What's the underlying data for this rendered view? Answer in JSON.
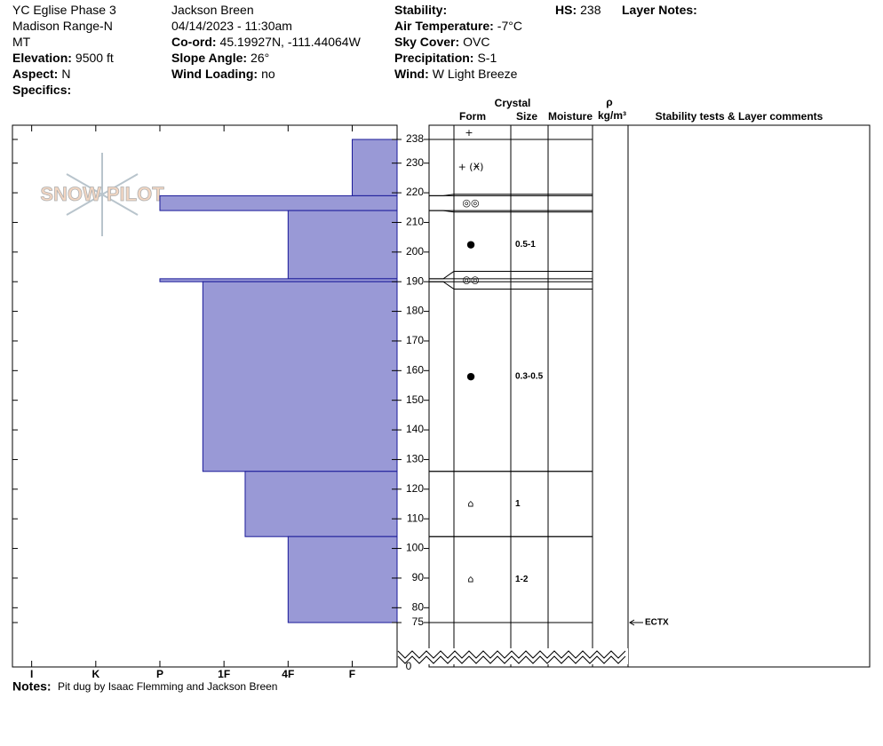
{
  "header": {
    "columns": [
      [
        {
          "value": "YC Eglise Phase 3"
        },
        {
          "value": "Madison Range-N"
        },
        {
          "value": "MT"
        },
        {
          "label": "Elevation:",
          "value": "9500 ft"
        },
        {
          "label": "Aspect:",
          "value": "N"
        },
        {
          "label": "Specifics:"
        }
      ],
      [
        {
          "value": "Jackson Breen"
        },
        {
          "value": "04/14/2023 - 11:30am"
        },
        {
          "label": "Co-ord:",
          "value": "45.19927N, -111.44064W"
        },
        {
          "label": "Slope Angle:",
          "value": "26°"
        },
        {
          "label": "Wind Loading:",
          "value": "no"
        }
      ],
      [
        {
          "label": "Stability:"
        },
        {
          "label": "Air Temperature:",
          "value": "-7°C"
        },
        {
          "label": "Sky Cover:",
          "value": "OVC"
        },
        {
          "label": "Precipitation:",
          "value": "S-1"
        },
        {
          "label": "Wind:",
          "value": "W  Light Breeze"
        }
      ],
      [
        {
          "label": "HS:",
          "value": 238
        }
      ],
      [
        {
          "label": "Layer Notes:"
        }
      ]
    ]
  },
  "logo": "SNOW PILOT",
  "notes": {
    "label": "Notes:",
    "value": "Pit dug by Isaac Flemming and Jackson Breen"
  },
  "chart_data": {
    "type": "snow-profile",
    "column_headers": {
      "crystal": "Crystal",
      "form": "Form",
      "size": "Size",
      "moisture": "Moisture",
      "density_symbol": "ρ",
      "density_unit": "kg/m³",
      "comments": "Stability tests & Layer comments"
    },
    "ylim": [
      75,
      238
    ],
    "yticks": [
      75,
      80,
      90,
      100,
      110,
      120,
      130,
      140,
      150,
      160,
      170,
      180,
      190,
      200,
      210,
      220,
      230,
      238
    ],
    "axis_break_tick": 0,
    "xlim": [
      6.3,
      0.3
    ],
    "xticks": [
      {
        "value": 6,
        "label": "I"
      },
      {
        "value": 5,
        "label": "K"
      },
      {
        "value": 4,
        "label": "P"
      },
      {
        "value": 3,
        "label": "1F"
      },
      {
        "value": 2,
        "label": "4F"
      },
      {
        "value": 1,
        "label": "F"
      }
    ],
    "color": "#9999d6",
    "surface_form": "+",
    "layers": [
      {
        "top": 238,
        "bottom": 219,
        "hardness": 1,
        "form": "+ (Ӿ)"
      },
      {
        "top": 219,
        "bottom": 214,
        "hardness": 4,
        "form": "◎◎"
      },
      {
        "top": 214,
        "bottom": 191,
        "hardness": 2,
        "form": "●",
        "size": "0.5-1"
      },
      {
        "top": 191,
        "bottom": 190,
        "hardness": 4,
        "form": "◎◎"
      },
      {
        "top": 190,
        "bottom": 126,
        "hardness": 3.33,
        "form": "●",
        "size": "0.3-0.5"
      },
      {
        "top": 126,
        "bottom": 104,
        "hardness": 2.67,
        "form": "⌂",
        "size": "1"
      },
      {
        "top": 104,
        "bottom": 75,
        "hardness": 2,
        "form": "⌂",
        "size": "1-2"
      }
    ],
    "stability_tests": [
      {
        "height": 75,
        "label": "ECTX"
      }
    ]
  }
}
